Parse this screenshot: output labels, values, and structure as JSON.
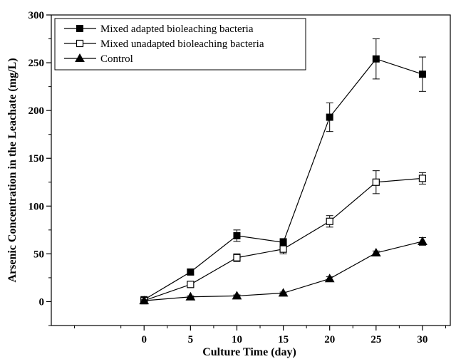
{
  "chart_data": {
    "type": "line",
    "title": "",
    "xlabel": "Culture Time (day)",
    "ylabel": "Arsenic Concentration in the Leachate (mg/L)",
    "xlim": [
      -10,
      33
    ],
    "ylim": [
      -25,
      300
    ],
    "xticks": [
      0,
      5,
      10,
      15,
      20,
      25,
      30
    ],
    "yticks": [
      0,
      50,
      100,
      150,
      200,
      250,
      300
    ],
    "x": [
      0,
      5,
      10,
      15,
      20,
      25,
      30
    ],
    "grid": false,
    "legend_position": "top-left",
    "series": [
      {
        "name": "Mixed adapted bioleaching bacteria",
        "marker": "filled-square",
        "values": [
          2,
          31,
          69,
          62,
          193,
          254,
          238
        ],
        "errors": [
          2,
          3,
          6,
          4,
          15,
          21,
          18
        ]
      },
      {
        "name": "Mixed unadapted bioleaching bacteria",
        "marker": "open-square",
        "values": [
          1,
          18,
          46,
          55,
          84,
          125,
          129
        ],
        "errors": [
          1,
          2,
          4,
          5,
          6,
          12,
          6
        ]
      },
      {
        "name": "Control",
        "marker": "filled-triangle",
        "values": [
          1,
          5,
          6,
          9,
          24,
          51,
          63
        ],
        "errors": [
          1,
          1,
          1,
          1,
          2,
          2,
          4
        ]
      }
    ]
  }
}
